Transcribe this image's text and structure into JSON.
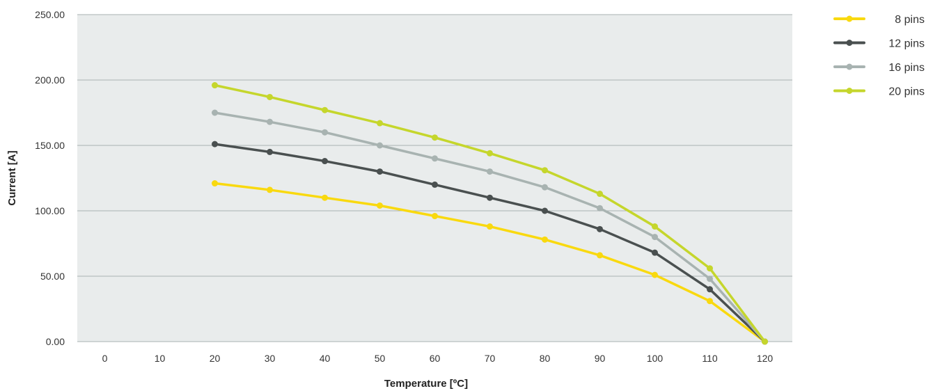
{
  "chart_data": {
    "type": "line",
    "title": "",
    "xlabel": "Temperature [ºC]",
    "ylabel": "Current [A]",
    "x": [
      0,
      10,
      20,
      30,
      40,
      50,
      60,
      70,
      80,
      90,
      100,
      110,
      120
    ],
    "x_tick_labels": [
      "0",
      "10",
      "20",
      "30",
      "40",
      "50",
      "60",
      "70",
      "80",
      "90",
      "100",
      "110",
      "120"
    ],
    "y_ticks": [
      0,
      50,
      100,
      150,
      200,
      250
    ],
    "y_tick_labels": [
      "0.00",
      "50.00",
      "100.00",
      "150.00",
      "200.00",
      "250.00"
    ],
    "xlim": [
      -5,
      125
    ],
    "ylim": [
      0,
      250
    ],
    "grid": "horizontal",
    "legend_position": "top-right",
    "plot_background": "#e9ecec",
    "series": [
      {
        "name": "8 pins",
        "color": "#f9d90f",
        "x": [
          20,
          30,
          40,
          50,
          60,
          70,
          80,
          90,
          100,
          110,
          120
        ],
        "values": [
          121,
          116,
          110,
          104,
          96,
          88,
          78,
          66,
          51,
          31,
          0
        ]
      },
      {
        "name": "12 pins",
        "color": "#4a5050",
        "x": [
          20,
          30,
          40,
          50,
          60,
          70,
          80,
          90,
          100,
          110,
          120
        ],
        "values": [
          151,
          145,
          138,
          130,
          120,
          110,
          100,
          86,
          68,
          40,
          0
        ]
      },
      {
        "name": "16 pins",
        "color": "#a8b3b1",
        "x": [
          20,
          30,
          40,
          50,
          60,
          70,
          80,
          90,
          100,
          110,
          120
        ],
        "values": [
          175,
          168,
          160,
          150,
          140,
          130,
          118,
          102,
          80,
          48,
          0
        ]
      },
      {
        "name": "20 pins",
        "color": "#c5d62c",
        "x": [
          20,
          30,
          40,
          50,
          60,
          70,
          80,
          90,
          100,
          110,
          120
        ],
        "values": [
          196,
          187,
          177,
          167,
          156,
          144,
          131,
          113,
          88,
          56,
          0
        ]
      }
    ]
  }
}
